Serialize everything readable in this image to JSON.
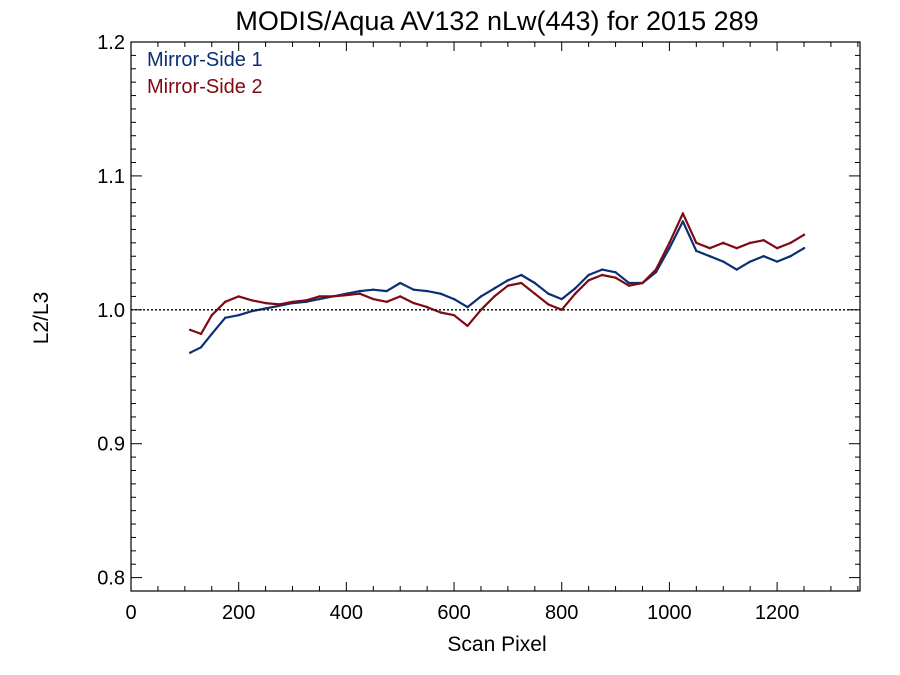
{
  "chart_data": {
    "type": "line",
    "title": "MODIS/Aqua AV132 nLw(443) for 2015 289",
    "xlabel": "Scan Pixel",
    "ylabel": "L2/L3",
    "xlim": [
      0,
      1354
    ],
    "ylim": [
      0.79,
      1.2
    ],
    "x_ticks": [
      0,
      200,
      400,
      600,
      800,
      1000,
      1200
    ],
    "y_ticks": [
      0.8,
      0.9,
      1.0,
      1.1,
      1.2
    ],
    "x_tick_labels": [
      "0",
      "200",
      "400",
      "600",
      "800",
      "1000",
      "1200"
    ],
    "y_tick_labels": [
      "0.8",
      "0.9",
      "1.0",
      "1.1",
      "1.2"
    ],
    "reference_line": {
      "y": 1.0,
      "style": "dotted"
    },
    "legend_position": "top-left",
    "x": [
      110,
      130,
      150,
      175,
      200,
      225,
      250,
      275,
      300,
      325,
      350,
      375,
      400,
      425,
      450,
      475,
      500,
      525,
      550,
      575,
      600,
      625,
      650,
      675,
      700,
      725,
      750,
      775,
      800,
      825,
      850,
      875,
      900,
      925,
      950,
      975,
      1000,
      1025,
      1050,
      1075,
      1100,
      1125,
      1150,
      1175,
      1200,
      1225,
      1250
    ],
    "series": [
      {
        "name": "Mirror-Side 1",
        "color": "#0b2f75",
        "values": [
          0.968,
          0.972,
          0.982,
          0.994,
          0.996,
          0.999,
          1.001,
          1.003,
          1.005,
          1.006,
          1.008,
          1.01,
          1.012,
          1.014,
          1.015,
          1.014,
          1.02,
          1.015,
          1.014,
          1.012,
          1.008,
          1.002,
          1.01,
          1.016,
          1.022,
          1.026,
          1.02,
          1.012,
          1.008,
          1.016,
          1.026,
          1.03,
          1.028,
          1.02,
          1.02,
          1.028,
          1.046,
          1.066,
          1.044,
          1.04,
          1.036,
          1.03,
          1.036,
          1.04,
          1.036,
          1.04,
          1.046
        ]
      },
      {
        "name": "Mirror-Side 2",
        "color": "#7f0a12",
        "values": [
          0.985,
          0.982,
          0.996,
          1.006,
          1.01,
          1.007,
          1.005,
          1.004,
          1.006,
          1.007,
          1.01,
          1.01,
          1.011,
          1.012,
          1.008,
          1.006,
          1.01,
          1.005,
          1.002,
          0.998,
          0.996,
          0.988,
          1.0,
          1.01,
          1.018,
          1.02,
          1.012,
          1.004,
          1.0,
          1.012,
          1.022,
          1.026,
          1.024,
          1.018,
          1.02,
          1.03,
          1.05,
          1.072,
          1.05,
          1.046,
          1.05,
          1.046,
          1.05,
          1.052,
          1.046,
          1.05,
          1.056
        ]
      }
    ]
  }
}
